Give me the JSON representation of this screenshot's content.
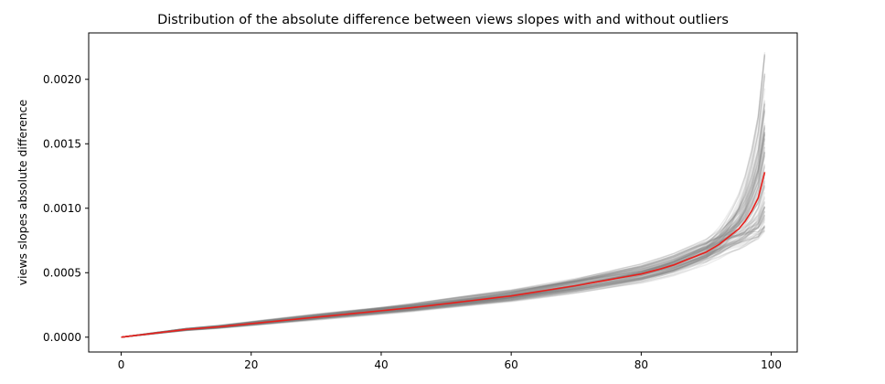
{
  "chart_data": {
    "type": "line",
    "title": "Distribution of the absolute difference between views slopes with and without outliers",
    "xlabel": "",
    "ylabel": "views slopes absolute difference",
    "xlim": [
      -5,
      104
    ],
    "ylim": [
      -0.000115,
      0.00236
    ],
    "xticks": [
      0,
      20,
      40,
      60,
      80,
      100
    ],
    "xtick_labels": [
      "0",
      "20",
      "40",
      "60",
      "80",
      "100"
    ],
    "yticks": [
      0,
      0.0005,
      0.001,
      0.0015,
      0.002
    ],
    "ytick_labels": [
      "0.0000",
      "0.0005",
      "0.0010",
      "0.0015",
      "0.0020"
    ],
    "grid": false,
    "legend": "none",
    "colors": {
      "mean": "#e8201c",
      "runs": "#808080"
    },
    "background_runs": {
      "count": 100,
      "opacity": 0.15,
      "end_range": [
        0.00082,
        0.00225
      ]
    },
    "series": [
      {
        "role": "mean",
        "x": [
          0,
          5,
          10,
          15,
          20,
          25,
          30,
          35,
          40,
          45,
          50,
          55,
          60,
          65,
          70,
          75,
          80,
          83,
          85,
          87,
          89,
          90,
          91,
          92,
          93,
          94,
          95,
          96,
          97,
          98,
          99
        ],
        "values": [
          0,
          3e-05,
          6e-05,
          8e-05,
          0.000105,
          0.00013,
          0.000155,
          0.00018,
          0.000205,
          0.00023,
          0.00026,
          0.00029,
          0.00032,
          0.00036,
          0.0004,
          0.000445,
          0.00049,
          0.00053,
          0.00056,
          0.0006,
          0.00064,
          0.00066,
          0.00069,
          0.00072,
          0.00076,
          0.0008,
          0.00084,
          0.0009,
          0.00098,
          0.00108,
          0.00128
        ]
      }
    ]
  }
}
